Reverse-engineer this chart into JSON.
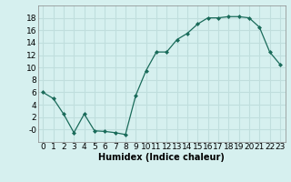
{
  "x": [
    0,
    1,
    2,
    3,
    4,
    5,
    6,
    7,
    8,
    9,
    10,
    11,
    12,
    13,
    14,
    15,
    16,
    17,
    18,
    19,
    20,
    21,
    22,
    23
  ],
  "y": [
    6,
    5,
    2.5,
    -0.5,
    2.5,
    -0.2,
    -0.3,
    -0.5,
    -0.8,
    5.5,
    9.5,
    12.5,
    12.5,
    14.5,
    15.5,
    17,
    18,
    18,
    18.2,
    18.2,
    18,
    16.5,
    12.5,
    10.5
  ],
  "line_color": "#1a6b5a",
  "marker": "D",
  "marker_size": 2,
  "bg_color": "#d6f0ef",
  "grid_color": "#c0dedd",
  "xlabel": "Humidex (Indice chaleur)",
  "xlim": [
    -0.5,
    23.5
  ],
  "ylim": [
    -2,
    20
  ],
  "yticks": [
    0,
    2,
    4,
    6,
    8,
    10,
    12,
    14,
    16,
    18
  ],
  "xticks": [
    0,
    1,
    2,
    3,
    4,
    5,
    6,
    7,
    8,
    9,
    10,
    11,
    12,
    13,
    14,
    15,
    16,
    17,
    18,
    19,
    20,
    21,
    22,
    23
  ],
  "xtick_labels": [
    "0",
    "1",
    "2",
    "3",
    "4",
    "5",
    "6",
    "7",
    "8",
    "9",
    "10",
    "11",
    "12",
    "13",
    "14",
    "15",
    "16",
    "17",
    "18",
    "19",
    "20",
    "21",
    "22",
    "23"
  ],
  "ytick_labels": [
    "-0",
    "2",
    "4",
    "6",
    "8",
    "10",
    "12",
    "14",
    "16",
    "18"
  ],
  "xlabel_fontsize": 7,
  "tick_fontsize": 6.5
}
